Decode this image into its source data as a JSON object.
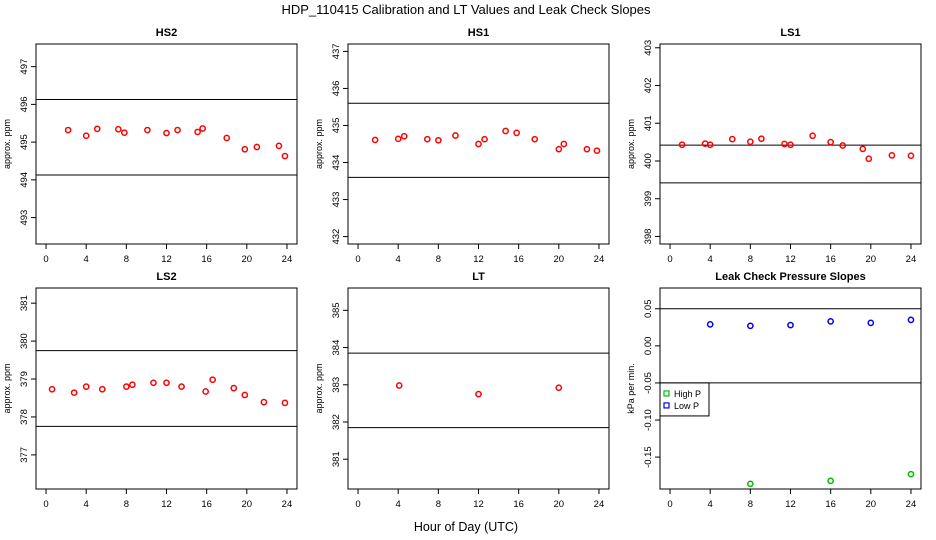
{
  "figure": {
    "title": "HDP_110415  Calibration and LT Values and Leak Check Slopes",
    "xlabel": "Hour of Day (UTC)"
  },
  "colors": {
    "calibration": "#ff0000",
    "high_p": "#00bb00",
    "low_p": "#0000ee",
    "axis": "#000000"
  },
  "chart_data": [
    {
      "type": "scatter",
      "title": "HS2",
      "ylabel": "approx. ppm",
      "xlim": [
        -1,
        25
      ],
      "xticks": [
        0,
        4,
        8,
        12,
        16,
        20,
        24
      ],
      "ylim": [
        492.3,
        497.6
      ],
      "yticks": [
        493,
        494,
        495,
        496,
        497
      ],
      "hlines": [
        496.13,
        494.13
      ],
      "series": [
        {
          "name": "calibration",
          "x": [
            2.2,
            4.0,
            5.1,
            7.2,
            7.8,
            10.1,
            12.0,
            13.1,
            15.1,
            15.6,
            18.0,
            19.8,
            21.0,
            23.2,
            23.8
          ],
          "y": [
            495.32,
            495.17,
            495.35,
            495.34,
            495.25,
            495.32,
            495.24,
            495.32,
            495.27,
            495.36,
            495.11,
            494.81,
            494.87,
            494.9,
            494.63
          ]
        }
      ]
    },
    {
      "type": "scatter",
      "title": "HS1",
      "ylabel": "approx. ppm",
      "xlim": [
        -1,
        25
      ],
      "xticks": [
        0,
        4,
        8,
        12,
        16,
        20,
        24
      ],
      "ylim": [
        431.8,
        437.2
      ],
      "yticks": [
        432,
        433,
        434,
        435,
        436,
        437
      ],
      "hlines": [
        435.6,
        433.6
      ],
      "series": [
        {
          "name": "calibration",
          "x": [
            1.7,
            4.0,
            4.6,
            6.9,
            8.0,
            9.7,
            12.0,
            12.6,
            14.7,
            15.8,
            17.6,
            20.0,
            20.5,
            22.8,
            23.8
          ],
          "y": [
            434.61,
            434.64,
            434.71,
            434.63,
            434.6,
            434.73,
            434.5,
            434.63,
            434.85,
            434.8,
            434.63,
            434.36,
            434.5,
            434.36,
            434.32
          ]
        }
      ]
    },
    {
      "type": "scatter",
      "title": "LS1",
      "ylabel": "approx. ppm",
      "xlim": [
        -1,
        25
      ],
      "xticks": [
        0,
        4,
        8,
        12,
        16,
        20,
        24
      ],
      "ylim": [
        397.8,
        403.1
      ],
      "yticks": [
        398,
        399,
        400,
        401,
        402,
        403
      ],
      "hlines": [
        400.42,
        399.42
      ],
      "series": [
        {
          "name": "calibration",
          "x": [
            1.2,
            3.5,
            4.0,
            6.2,
            8.0,
            9.1,
            11.4,
            12.0,
            14.2,
            16.0,
            17.2,
            19.2,
            19.8,
            22.1,
            24.0
          ],
          "y": [
            400.43,
            400.46,
            400.43,
            400.58,
            400.51,
            400.59,
            400.45,
            400.43,
            400.67,
            400.5,
            400.41,
            400.32,
            400.06,
            400.15,
            400.14
          ]
        }
      ]
    },
    {
      "type": "scatter",
      "title": "LS2",
      "ylabel": "approx. ppm",
      "xlim": [
        -1,
        25
      ],
      "xticks": [
        0,
        4,
        8,
        12,
        16,
        20,
        24
      ],
      "ylim": [
        376.1,
        381.4
      ],
      "yticks": [
        377,
        378,
        379,
        380,
        381
      ],
      "hlines": [
        379.75,
        377.75
      ],
      "series": [
        {
          "name": "calibration",
          "x": [
            0.6,
            2.8,
            4.0,
            5.6,
            8.0,
            8.6,
            10.7,
            12.0,
            13.5,
            15.9,
            16.6,
            18.7,
            19.8,
            21.7,
            23.8
          ],
          "y": [
            378.73,
            378.64,
            378.8,
            378.73,
            378.8,
            378.85,
            378.9,
            378.9,
            378.8,
            378.67,
            378.98,
            378.76,
            378.58,
            378.39,
            378.37
          ]
        }
      ]
    },
    {
      "type": "scatter",
      "title": "LT",
      "ylabel": "approx. ppm",
      "xlim": [
        -1,
        25
      ],
      "xticks": [
        0,
        4,
        8,
        12,
        16,
        20,
        24
      ],
      "ylim": [
        380.2,
        385.6
      ],
      "yticks": [
        381,
        382,
        383,
        384,
        385
      ],
      "hlines": [
        383.85,
        381.85
      ],
      "series": [
        {
          "name": "calibration",
          "x": [
            4.1,
            12.0,
            20.0
          ],
          "y": [
            382.98,
            382.75,
            382.92
          ]
        }
      ]
    },
    {
      "type": "scatter",
      "title": "Leak Check Pressure Slopes",
      "ylabel": "kPa per min.",
      "xlim": [
        -1,
        25
      ],
      "xticks": [
        0,
        4,
        8,
        12,
        16,
        20,
        24
      ],
      "ylim": [
        -0.193,
        0.078
      ],
      "yticks": [
        -0.15,
        -0.1,
        -0.05,
        0.0,
        0.05
      ],
      "ytick_labels": [
        "-0.15",
        "-0.10",
        "-0.05",
        "0.00",
        "0.05"
      ],
      "hlines": [
        0.05,
        -0.05
      ],
      "legend": {
        "position": "left-middle",
        "entries": [
          "High P",
          "Low P"
        ]
      },
      "series": [
        {
          "name": "High P",
          "x": [
            8,
            16,
            24
          ],
          "y": [
            -0.186,
            -0.182,
            -0.173
          ]
        },
        {
          "name": "Low P",
          "x": [
            4,
            8,
            12,
            16,
            20,
            24
          ],
          "y": [
            0.029,
            0.027,
            0.028,
            0.033,
            0.031,
            0.035
          ]
        }
      ]
    }
  ]
}
